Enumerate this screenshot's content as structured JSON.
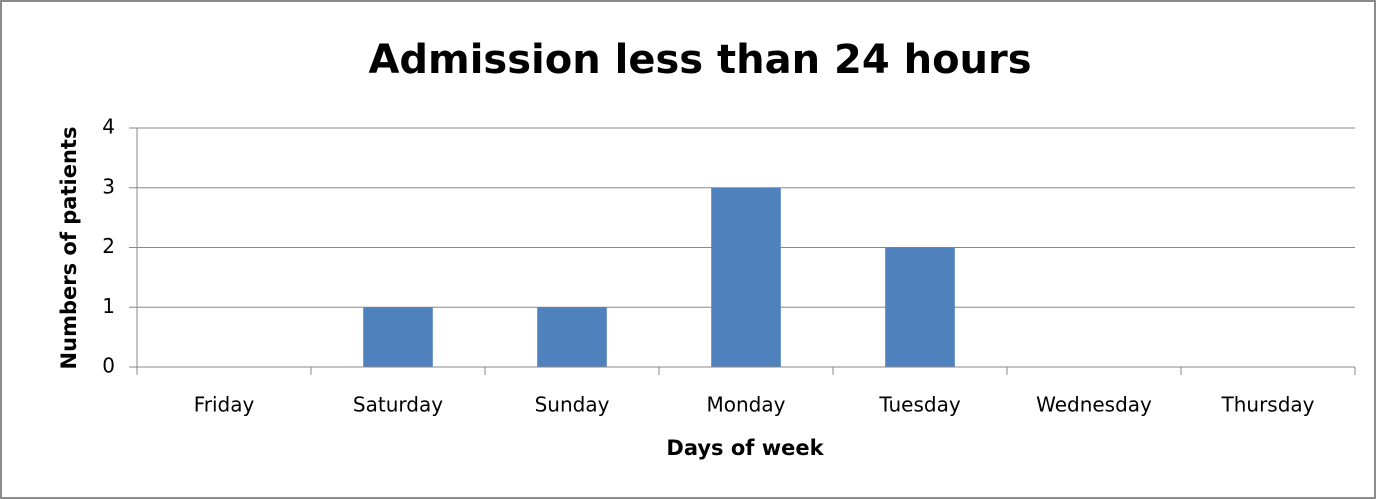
{
  "chart_data": {
    "type": "bar",
    "title": "Admission less than 24 hours",
    "x_label": "Days of week",
    "y_label": "Numbers of patients",
    "categories": [
      "Friday",
      "Saturday",
      "Sunday",
      "Monday",
      "Tuesday",
      "Wednesday",
      "Thursday"
    ],
    "values": [
      0,
      1,
      1,
      3,
      2,
      0,
      0
    ],
    "color": "#4f81bd",
    "ylim": [
      0,
      4
    ],
    "yticks": [
      0,
      1,
      2,
      3,
      4
    ],
    "grid": true
  }
}
